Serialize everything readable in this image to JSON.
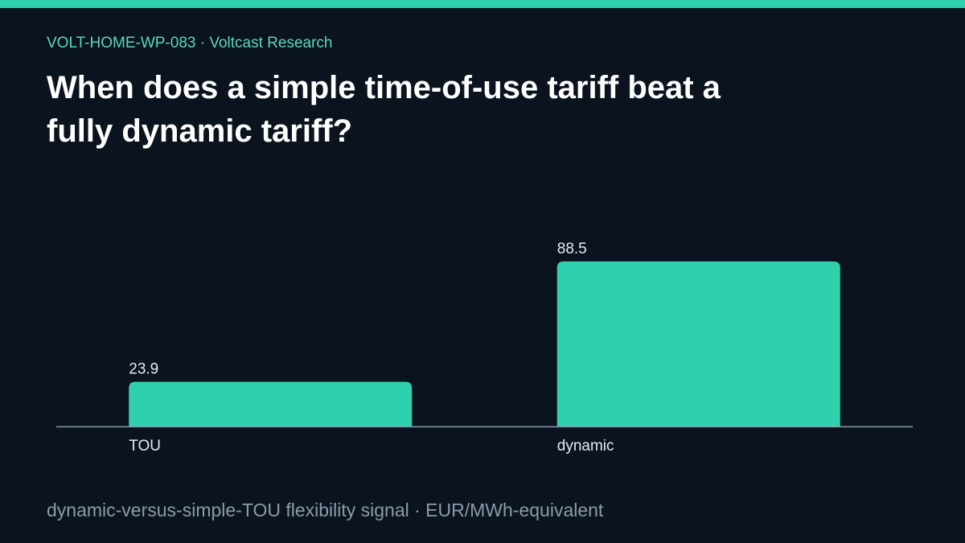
{
  "chart_data": {
    "type": "bar",
    "kicker": "VOLT-HOME-WP-083 · Voltcast Research",
    "title": "When does a simple time-of-use tariff beat a fully dynamic tariff?",
    "caption": "dynamic-versus-simple-TOU flexibility signal · EUR/MWh-equivalent",
    "categories": [
      "TOU",
      "dynamic"
    ],
    "values": [
      23.9,
      88.5
    ],
    "color": "#2fd0ae"
  }
}
